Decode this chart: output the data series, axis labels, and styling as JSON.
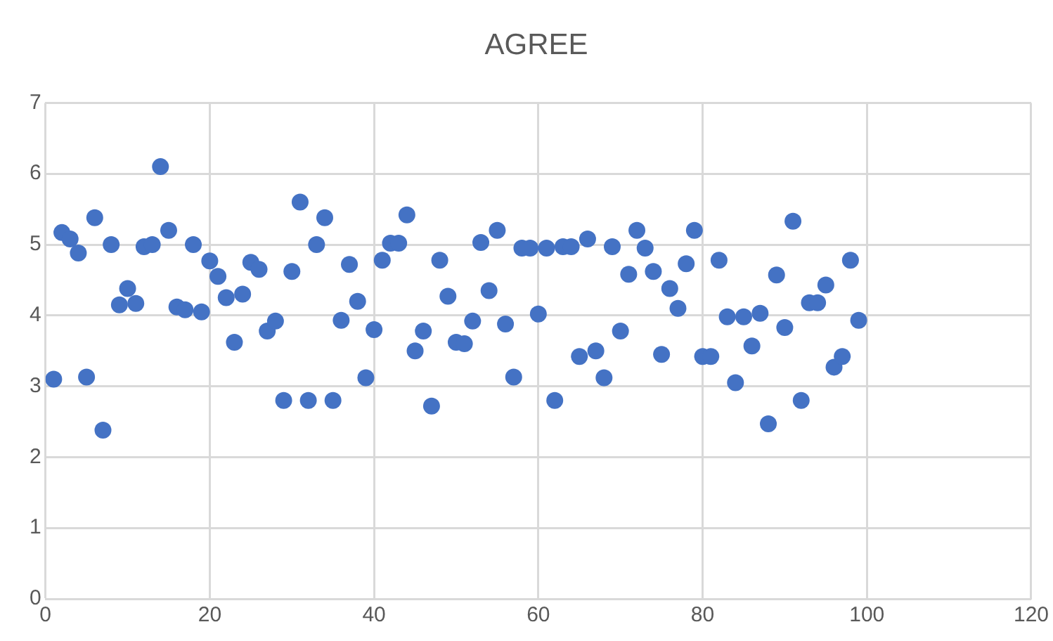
{
  "chart_data": {
    "type": "scatter",
    "title": "AGREE",
    "x": [
      1,
      2,
      3,
      4,
      5,
      6,
      7,
      8,
      9,
      10,
      11,
      12,
      13,
      14,
      15,
      16,
      17,
      18,
      19,
      20,
      21,
      22,
      23,
      24,
      25,
      26,
      27,
      28,
      29,
      30,
      31,
      32,
      33,
      34,
      35,
      36,
      37,
      38,
      39,
      40,
      41,
      42,
      43,
      44,
      45,
      46,
      47,
      48,
      49,
      50,
      51,
      52,
      53,
      54,
      55,
      56,
      57,
      58,
      59,
      60,
      61,
      62,
      63,
      64,
      65,
      66,
      67,
      68,
      69,
      70,
      71,
      72,
      73,
      74,
      75,
      76,
      77,
      78,
      79,
      80,
      81,
      82,
      83,
      84,
      85,
      86,
      87,
      88,
      89,
      90,
      91,
      92,
      93,
      94,
      95,
      96,
      97,
      98,
      99
    ],
    "values": [
      3.1,
      5.17,
      5.08,
      4.88,
      3.13,
      5.38,
      2.38,
      5.0,
      4.15,
      4.38,
      4.17,
      4.97,
      5.0,
      6.1,
      5.2,
      4.12,
      4.08,
      5.0,
      4.05,
      4.77,
      4.55,
      4.25,
      3.62,
      4.3,
      4.75,
      4.65,
      3.78,
      3.92,
      2.8,
      4.62,
      5.6,
      2.8,
      5.0,
      5.38,
      2.8,
      3.93,
      4.72,
      4.2,
      3.12,
      3.8,
      4.78,
      5.02,
      5.02,
      5.42,
      3.5,
      3.78,
      2.72,
      4.78,
      4.27,
      3.62,
      3.6,
      3.92,
      5.03,
      4.35,
      5.2,
      3.88,
      3.13,
      4.95,
      4.95,
      4.02,
      4.95,
      2.8,
      4.97,
      4.97,
      3.42,
      5.08,
      3.5,
      3.12,
      4.97,
      3.78,
      4.58,
      5.2,
      4.95,
      4.62,
      3.45,
      4.38,
      4.1,
      4.73,
      5.2,
      3.42,
      3.42,
      4.78,
      3.98,
      3.05,
      3.98,
      3.57,
      4.03,
      2.47,
      4.57,
      3.83,
      5.33,
      2.8,
      4.18,
      4.18,
      4.43,
      3.27,
      3.42,
      4.78,
      3.93
    ],
    "color": "#4472c4",
    "marker": "circle",
    "grid": true,
    "legend": false,
    "xlim": [
      0,
      120
    ],
    "xticks": [
      0,
      20,
      40,
      60,
      80,
      100,
      120
    ],
    "ylim": [
      0,
      7
    ],
    "yticks": [
      0,
      1,
      2,
      3,
      4,
      5,
      6,
      7
    ]
  }
}
